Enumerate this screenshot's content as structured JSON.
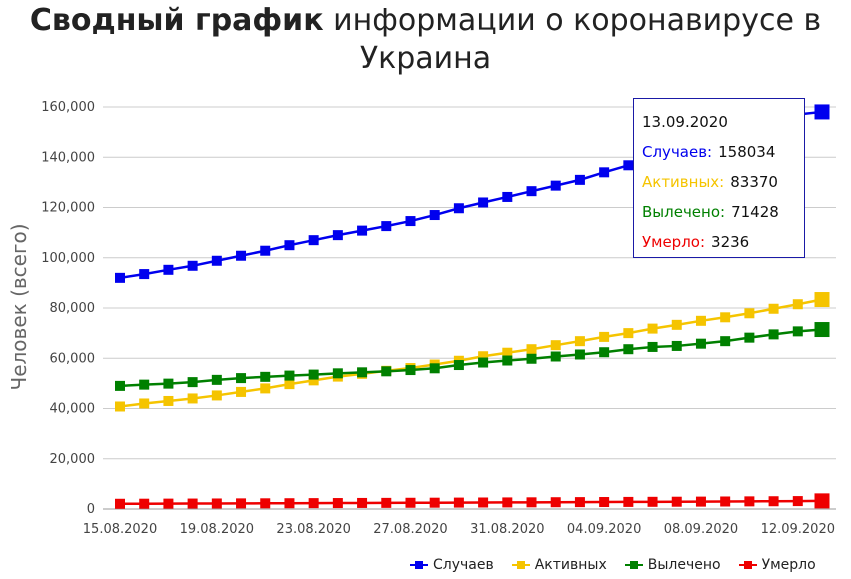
{
  "title": {
    "bold": "Сводный график",
    "rest": "информации о коронавирусе в Украина"
  },
  "tooltip": {
    "date": "13.09.2020",
    "rows": [
      {
        "label": "Случаев:",
        "value": "158034",
        "color": "#0000ee"
      },
      {
        "label": "Активных:",
        "value": "83370",
        "color": "#f5c400"
      },
      {
        "label": "Вылечено:",
        "value": "71428",
        "color": "#008000"
      },
      {
        "label": "Умерло:",
        "value": "3236",
        "color": "#ee0000"
      }
    ]
  },
  "chart_data": {
    "type": "line",
    "ylabel": "Человек (всего)",
    "xlabel": "",
    "ylim": [
      0,
      160000
    ],
    "yticks": [
      "0",
      "20,000",
      "40,000",
      "60,000",
      "80,000",
      "100,000",
      "120,000",
      "140,000",
      "160,000"
    ],
    "x": [
      "15.08.2020",
      "16.08.2020",
      "17.08.2020",
      "18.08.2020",
      "19.08.2020",
      "20.08.2020",
      "21.08.2020",
      "22.08.2020",
      "23.08.2020",
      "24.08.2020",
      "25.08.2020",
      "26.08.2020",
      "27.08.2020",
      "28.08.2020",
      "29.08.2020",
      "30.08.2020",
      "31.08.2020",
      "01.09.2020",
      "02.09.2020",
      "03.09.2020",
      "04.09.2020",
      "05.09.2020",
      "06.09.2020",
      "07.09.2020",
      "08.09.2020",
      "09.09.2020",
      "10.09.2020",
      "11.09.2020",
      "12.09.2020",
      "13.09.2020"
    ],
    "xtick_labels": [
      "15.08.2020",
      "19.08.2020",
      "23.08.2020",
      "27.08.2020",
      "31.08.2020",
      "04.09.2020",
      "08.09.2020",
      "12.09.2020"
    ],
    "legend_position": "bottom-right",
    "grid": true,
    "series": [
      {
        "name": "Случаев",
        "color": "#0000ee",
        "values": [
          92000,
          93500,
          95200,
          96800,
          98800,
          100800,
          102800,
          105000,
          107000,
          109000,
          110800,
          112600,
          114600,
          117000,
          119700,
          122000,
          124200,
          126500,
          128700,
          131000,
          134000,
          136800,
          139500,
          142500,
          145500,
          148300,
          151600,
          154800,
          157000,
          158034
        ]
      },
      {
        "name": "Активных",
        "color": "#f5c400",
        "values": [
          40800,
          42000,
          43000,
          44000,
          45200,
          46600,
          48000,
          49700,
          51200,
          52700,
          53800,
          55000,
          56100,
          57500,
          59000,
          60800,
          62200,
          63600,
          65200,
          66800,
          68500,
          70000,
          71800,
          73300,
          74900,
          76300,
          77900,
          79700,
          81500,
          83370
        ]
      },
      {
        "name": "Вылечено",
        "color": "#008000",
        "values": [
          49000,
          49500,
          49900,
          50500,
          51400,
          52100,
          52600,
          53100,
          53500,
          54000,
          54400,
          54800,
          55300,
          56000,
          57300,
          58300,
          59100,
          59800,
          60700,
          61500,
          62400,
          63600,
          64500,
          64900,
          65800,
          66800,
          68200,
          69500,
          70700,
          71428
        ]
      },
      {
        "name": "Умерло",
        "color": "#ee0000",
        "values": [
          2080,
          2110,
          2140,
          2170,
          2200,
          2240,
          2270,
          2300,
          2340,
          2370,
          2410,
          2440,
          2480,
          2510,
          2550,
          2590,
          2620,
          2660,
          2700,
          2740,
          2780,
          2820,
          2860,
          2900,
          2940,
          2990,
          3040,
          3090,
          3150,
          3236
        ]
      }
    ]
  },
  "legend": [
    {
      "label": "Случаев",
      "color": "#0000ee"
    },
    {
      "label": "Активных",
      "color": "#f5c400"
    },
    {
      "label": "Вылечено",
      "color": "#008000"
    },
    {
      "label": "Умерло",
      "color": "#ee0000"
    }
  ]
}
